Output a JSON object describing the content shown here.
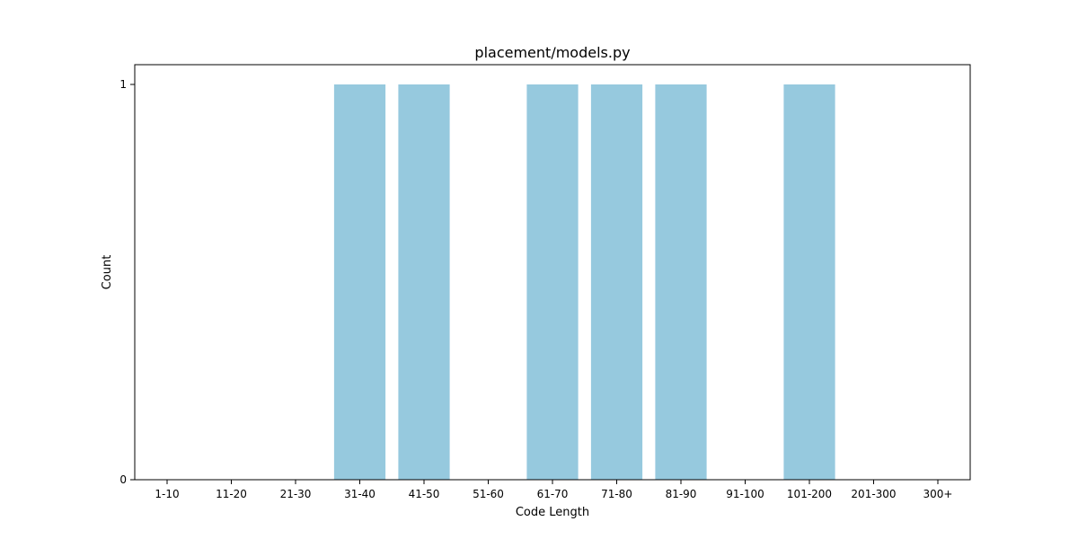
{
  "chart_data": {
    "type": "bar",
    "title": "placement/models.py",
    "xlabel": "Code Length",
    "ylabel": "Count",
    "categories": [
      "1-10",
      "11-20",
      "21-30",
      "31-40",
      "41-50",
      "51-60",
      "61-70",
      "71-80",
      "81-90",
      "91-100",
      "101-200",
      "201-300",
      "300+"
    ],
    "values": [
      0,
      0,
      0,
      1,
      1,
      0,
      1,
      1,
      1,
      0,
      1,
      0,
      0
    ],
    "ylim": [
      0,
      1.05
    ],
    "yticks": [
      0,
      1
    ],
    "bar_color": "#96c9de",
    "grid": false,
    "legend": "none"
  }
}
